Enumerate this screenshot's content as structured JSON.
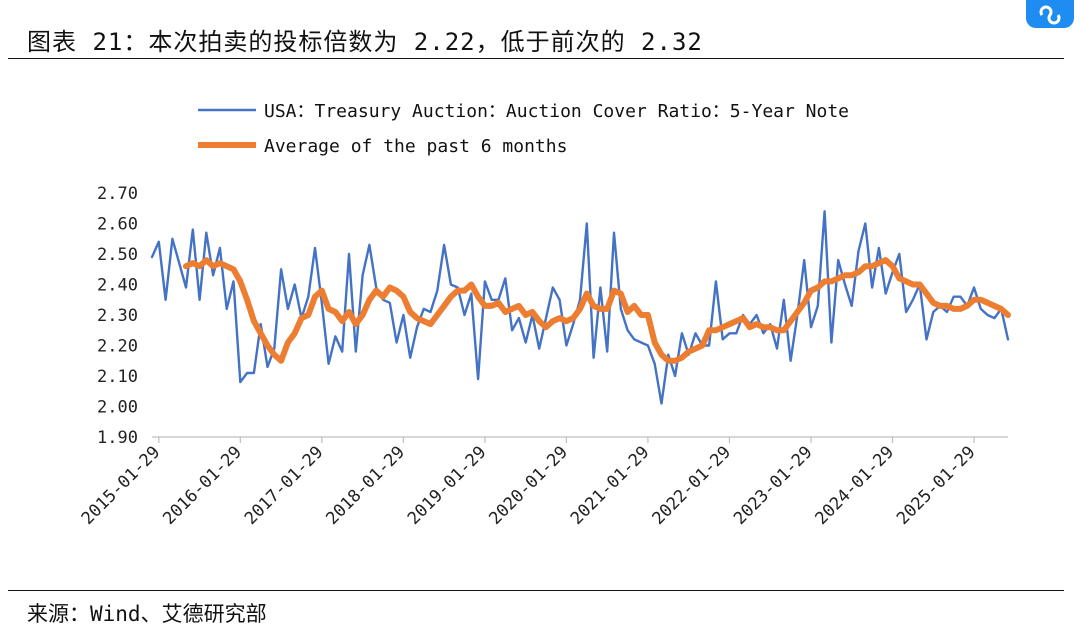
{
  "header": {
    "title": "图表 21：本次拍卖的投标倍数为 2.22，低于前次的 2.32"
  },
  "footer": {
    "source": "来源：Wind、艾德研究部"
  },
  "colors": {
    "primary": "#4472c4",
    "average": "#ed7d31",
    "badge": "#1e8cf0"
  },
  "chart_data": {
    "type": "line",
    "title": "",
    "xlabel": "",
    "ylabel": "",
    "ylim": [
      1.9,
      2.7
    ],
    "yticks": [
      "2.70",
      "2.60",
      "2.50",
      "2.40",
      "2.30",
      "2.20",
      "2.10",
      "2.00",
      "1.90"
    ],
    "xticks": [
      "2015-01-29",
      "2016-01-29",
      "2017-01-29",
      "2018-01-29",
      "2019-01-29",
      "2020-01-29",
      "2021-01-29",
      "2022-01-29",
      "2023-01-29",
      "2024-01-29",
      "2025-01-29"
    ],
    "legend_position": "top",
    "series": [
      {
        "name": "USA：Treasury Auction：Auction Cover Ratio：5-Year Note",
        "start": "2014-12",
        "values": [
          2.49,
          2.54,
          2.35,
          2.55,
          2.47,
          2.39,
          2.58,
          2.35,
          2.57,
          2.43,
          2.52,
          2.32,
          2.41,
          2.08,
          2.11,
          2.11,
          2.27,
          2.13,
          2.19,
          2.45,
          2.32,
          2.4,
          2.29,
          2.36,
          2.52,
          2.34,
          2.14,
          2.23,
          2.18,
          2.5,
          2.18,
          2.43,
          2.53,
          2.39,
          2.35,
          2.34,
          2.21,
          2.3,
          2.16,
          2.26,
          2.32,
          2.31,
          2.38,
          2.53,
          2.4,
          2.39,
          2.3,
          2.37,
          2.09,
          2.41,
          2.35,
          2.35,
          2.42,
          2.25,
          2.29,
          2.21,
          2.3,
          2.19,
          2.29,
          2.39,
          2.35,
          2.2,
          2.27,
          2.35,
          2.6,
          2.16,
          2.39,
          2.18,
          2.57,
          2.32,
          2.25,
          2.22,
          2.21,
          2.2,
          2.14,
          2.01,
          2.17,
          2.1,
          2.24,
          2.17,
          2.24,
          2.2,
          2.2,
          2.41,
          2.22,
          2.24,
          2.24,
          2.3,
          2.27,
          2.3,
          2.24,
          2.27,
          2.19,
          2.35,
          2.15,
          2.3,
          2.48,
          2.26,
          2.33,
          2.64,
          2.21,
          2.48,
          2.4,
          2.33,
          2.51,
          2.6,
          2.39,
          2.52,
          2.37,
          2.44,
          2.5,
          2.31,
          2.35,
          2.4,
          2.22,
          2.31,
          2.33,
          2.31,
          2.36,
          2.36,
          2.33,
          2.39,
          2.32,
          2.3,
          2.29,
          2.32,
          2.22
        ]
      },
      {
        "name": "Average of the past 6 months",
        "start": "2015-05",
        "values": [
          2.46,
          2.47,
          2.46,
          2.48,
          2.46,
          2.47,
          2.46,
          2.45,
          2.41,
          2.35,
          2.28,
          2.24,
          2.2,
          2.17,
          2.15,
          2.21,
          2.24,
          2.29,
          2.3,
          2.36,
          2.38,
          2.32,
          2.31,
          2.28,
          2.31,
          2.27,
          2.3,
          2.35,
          2.38,
          2.36,
          2.39,
          2.38,
          2.36,
          2.31,
          2.29,
          2.28,
          2.27,
          2.3,
          2.33,
          2.36,
          2.38,
          2.38,
          2.4,
          2.36,
          2.33,
          2.33,
          2.34,
          2.31,
          2.32,
          2.33,
          2.3,
          2.31,
          2.28,
          2.26,
          2.28,
          2.29,
          2.28,
          2.29,
          2.32,
          2.37,
          2.33,
          2.32,
          2.32,
          2.38,
          2.37,
          2.31,
          2.33,
          2.3,
          2.3,
          2.21,
          2.17,
          2.15,
          2.15,
          2.16,
          2.18,
          2.19,
          2.2,
          2.25,
          2.25,
          2.26,
          2.27,
          2.28,
          2.29,
          2.26,
          2.27,
          2.26,
          2.26,
          2.25,
          2.25,
          2.28,
          2.31,
          2.34,
          2.38,
          2.39,
          2.41,
          2.41,
          2.42,
          2.43,
          2.43,
          2.44,
          2.46,
          2.46,
          2.47,
          2.48,
          2.46,
          2.42,
          2.41,
          2.4,
          2.4,
          2.37,
          2.34,
          2.33,
          2.33,
          2.32,
          2.32,
          2.33,
          2.35,
          2.35,
          2.34,
          2.33,
          2.32,
          2.3
        ]
      }
    ]
  }
}
